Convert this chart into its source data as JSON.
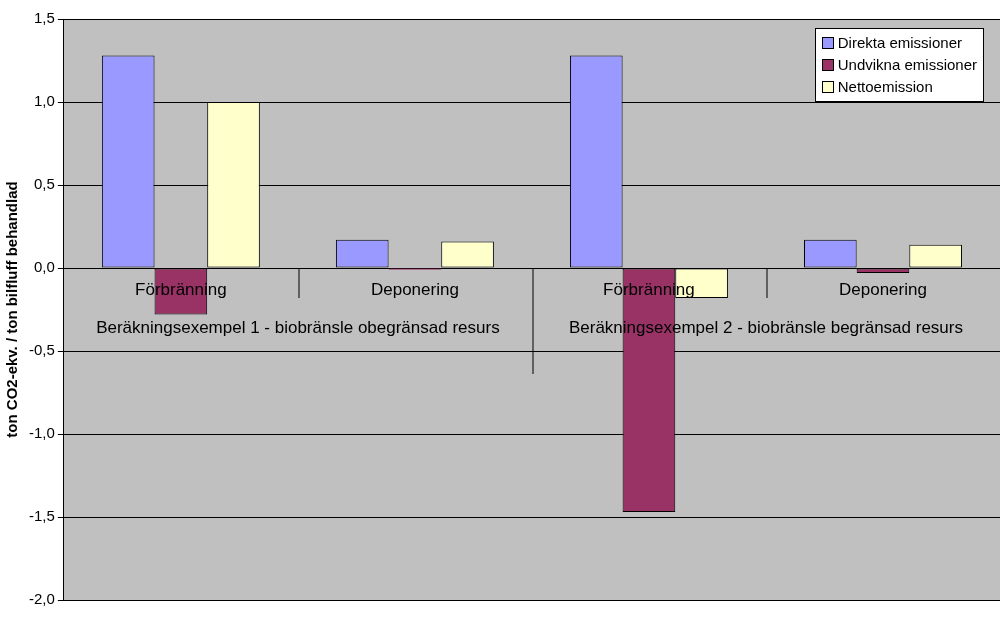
{
  "chart_data": {
    "type": "bar",
    "ylabel": "ton CO2-ekv. / ton bilfluff behandlad",
    "categories": [
      "Förbränning",
      "Deponering",
      "Förbränning",
      "Deponering"
    ],
    "annotations": [
      "Beräkningsexempel 1 - biobränsle obegränsad resurs",
      "Beräkningsexempel 2 - biobränsle begränsad resurs"
    ],
    "series": [
      {
        "name": "Direkta emissioner",
        "color": "#9999ff",
        "values": [
          1.28,
          0.17,
          1.28,
          0.17
        ]
      },
      {
        "name": "Undvikna emissioner",
        "color": "#993366",
        "values": [
          -0.28,
          -0.01,
          -1.47,
          -0.03
        ]
      },
      {
        "name": "Nettoemission",
        "color": "#ffffcc",
        "values": [
          1.0,
          0.16,
          -0.18,
          0.14
        ]
      }
    ],
    "ylim": [
      -2,
      1.5
    ],
    "yticks": [
      {
        "value": -2,
        "label": "-2,0"
      },
      {
        "value": -1.5,
        "label": "-1,5"
      },
      {
        "value": -1,
        "label": "-1,0"
      },
      {
        "value": -0.5,
        "label": "-0,5"
      },
      {
        "value": 0,
        "label": "0,0"
      },
      {
        "value": 0.5,
        "label": "0,5"
      },
      {
        "value": 1,
        "label": "1,0"
      },
      {
        "value": 1.5,
        "label": "1,5"
      }
    ],
    "grid": "y",
    "legend": "top right"
  }
}
